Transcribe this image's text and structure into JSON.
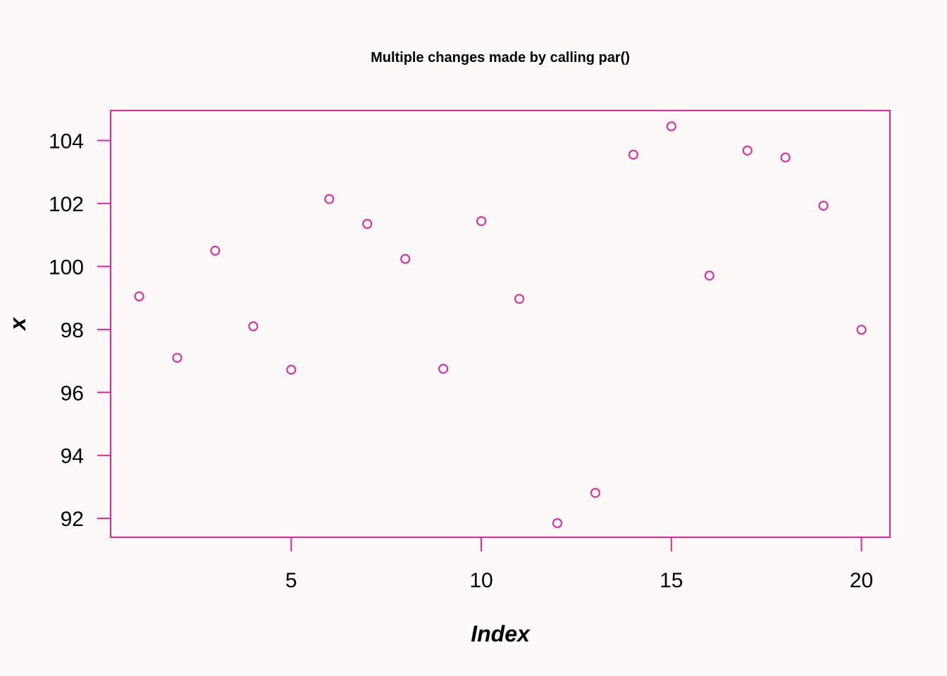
{
  "colors": {
    "background": "#fdf9f8",
    "accent": "#e8239a",
    "text": "#000000"
  },
  "chart_data": {
    "type": "scatter",
    "title": "Multiple changes made by calling par()",
    "xlabel": "Index",
    "ylabel": "x",
    "xlim": [
      0.25,
      20.75
    ],
    "ylim": [
      91.4,
      104.95
    ],
    "x_ticks": [
      5,
      10,
      15,
      20
    ],
    "y_ticks": [
      92,
      94,
      96,
      98,
      100,
      102,
      104
    ],
    "grid": false,
    "marker": "open-circle",
    "series": [
      {
        "x": [
          1,
          2,
          3,
          4,
          5,
          6,
          7,
          8,
          9,
          10,
          11,
          12,
          13,
          14,
          15,
          16,
          17,
          18,
          19,
          20
        ],
        "y": [
          99.05,
          97.1,
          100.5,
          98.1,
          96.72,
          102.14,
          101.35,
          100.24,
          96.75,
          101.44,
          98.97,
          91.85,
          92.81,
          103.55,
          104.45,
          99.71,
          103.68,
          103.46,
          101.93,
          97.99
        ]
      }
    ]
  }
}
